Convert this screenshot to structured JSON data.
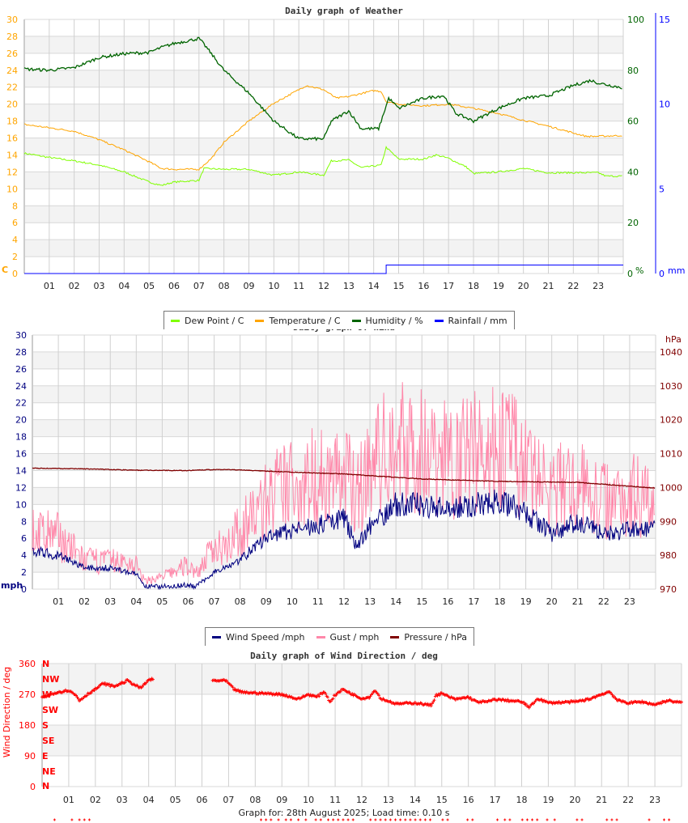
{
  "chart_data": [
    {
      "type": "line",
      "title": "Daily graph of Weather",
      "x_labels": [
        "01",
        "02",
        "03",
        "04",
        "05",
        "06",
        "07",
        "08",
        "09",
        "10",
        "11",
        "12",
        "13",
        "14",
        "15",
        "16",
        "17",
        "18",
        "19",
        "20",
        "21",
        "22",
        "23"
      ],
      "left_axis": {
        "unit": "C",
        "range": [
          0,
          30
        ],
        "ticks": [
          0,
          2,
          4,
          6,
          8,
          10,
          12,
          14,
          16,
          18,
          20,
          22,
          24,
          26,
          28,
          30
        ]
      },
      "right_axis_1": {
        "unit": "%",
        "range": [
          0,
          100
        ],
        "ticks": [
          0,
          20,
          40,
          60,
          80,
          100
        ]
      },
      "right_axis_2": {
        "unit": "mm",
        "range": [
          0,
          15
        ],
        "ticks": [
          0,
          5,
          10,
          15
        ]
      },
      "series": [
        {
          "name": "Dew Point / C",
          "color": "#80ff00",
          "axis": "left",
          "points": [
            [
              0,
              14.2
            ],
            [
              1,
              13.7
            ],
            [
              2,
              13.3
            ],
            [
              3,
              12.8
            ],
            [
              4,
              12
            ],
            [
              5,
              10.8
            ],
            [
              5.5,
              10.4
            ],
            [
              6,
              10.8
            ],
            [
              7,
              11
            ],
            [
              7.2,
              12.4
            ],
            [
              8,
              12.3
            ],
            [
              9,
              12.3
            ],
            [
              10,
              11.6
            ],
            [
              11,
              12
            ],
            [
              12,
              11.6
            ],
            [
              12.3,
              13.3
            ],
            [
              13,
              13.4
            ],
            [
              13.5,
              12.5
            ],
            [
              14.3,
              12.8
            ],
            [
              14.5,
              14.9
            ],
            [
              15,
              13.5
            ],
            [
              16,
              13.5
            ],
            [
              16.5,
              14
            ],
            [
              17,
              13.6
            ],
            [
              17.7,
              12.6
            ],
            [
              18,
              11.8
            ],
            [
              19,
              12
            ],
            [
              20,
              12.4
            ],
            [
              21,
              11.9
            ],
            [
              22,
              11.9
            ],
            [
              23,
              11.9
            ],
            [
              23.3,
              11.5
            ],
            [
              24,
              11.5
            ]
          ]
        },
        {
          "name": "Temperature / C",
          "color": "#ffa500",
          "axis": "left",
          "points": [
            [
              0,
              17.6
            ],
            [
              1,
              17.2
            ],
            [
              2,
              16.8
            ],
            [
              3,
              15.8
            ],
            [
              4,
              14.6
            ],
            [
              5,
              13.2
            ],
            [
              5.5,
              12.4
            ],
            [
              6,
              12.3
            ],
            [
              7,
              12.3
            ],
            [
              7.5,
              13.6
            ],
            [
              8,
              15.5
            ],
            [
              9,
              18
            ],
            [
              10,
              20.1
            ],
            [
              11,
              21.7
            ],
            [
              11.3,
              22.2
            ],
            [
              12,
              21.7
            ],
            [
              12.5,
              20.7
            ],
            [
              13,
              20.9
            ],
            [
              14,
              21.6
            ],
            [
              14.3,
              21.5
            ],
            [
              14.5,
              20.3
            ],
            [
              15,
              20
            ],
            [
              16,
              19.8
            ],
            [
              17,
              20
            ],
            [
              18,
              19.5
            ],
            [
              19,
              18.9
            ],
            [
              20,
              18.1
            ],
            [
              21,
              17.4
            ],
            [
              22,
              16.6
            ],
            [
              22.5,
              16.2
            ],
            [
              23,
              16.2
            ],
            [
              24,
              16.3
            ]
          ]
        },
        {
          "name": "Humidity / %",
          "color": "#006400",
          "axis": "right_1",
          "points": [
            [
              0,
              80.5
            ],
            [
              1,
              80
            ],
            [
              2,
              81
            ],
            [
              3,
              85
            ],
            [
              4,
              86.5
            ],
            [
              5,
              87
            ],
            [
              5.5,
              89
            ],
            [
              6,
              90.5
            ],
            [
              7,
              92.5
            ],
            [
              7.3,
              89
            ],
            [
              8,
              80
            ],
            [
              9,
              71
            ],
            [
              10,
              60
            ],
            [
              11,
              53
            ],
            [
              12,
              53
            ],
            [
              12.3,
              60
            ],
            [
              13,
              64
            ],
            [
              13.5,
              57
            ],
            [
              14.2,
              57
            ],
            [
              14.6,
              69
            ],
            [
              15,
              65
            ],
            [
              16,
              69
            ],
            [
              16.8,
              70
            ],
            [
              17.3,
              63
            ],
            [
              18,
              60
            ],
            [
              19,
              65
            ],
            [
              20,
              69
            ],
            [
              21,
              70
            ],
            [
              22,
              74
            ],
            [
              22.7,
              76
            ],
            [
              23,
              75
            ],
            [
              24,
              73
            ]
          ]
        },
        {
          "name": "Rainfall / mm",
          "color": "#0000ff",
          "axis": "right_2",
          "points": [
            [
              0,
              0
            ],
            [
              14.5,
              0
            ],
            [
              14.5,
              0.5
            ],
            [
              24,
              0.5
            ]
          ]
        }
      ]
    },
    {
      "type": "line",
      "title": "Daily graph of Wind",
      "x_labels": [
        "01",
        "02",
        "03",
        "04",
        "05",
        "06",
        "07",
        "08",
        "09",
        "10",
        "11",
        "12",
        "13",
        "14",
        "15",
        "16",
        "17",
        "18",
        "19",
        "20",
        "21",
        "22",
        "23"
      ],
      "left_axis": {
        "unit": "mph",
        "range": [
          0,
          30
        ],
        "ticks": [
          0,
          2,
          4,
          6,
          8,
          10,
          12,
          14,
          16,
          18,
          20,
          22,
          24,
          26,
          28,
          30
        ]
      },
      "right_axis": {
        "unit": "hPa",
        "range": [
          970,
          1045
        ],
        "ticks": [
          970,
          980,
          990,
          1000,
          1010,
          1020,
          1030,
          1040
        ]
      },
      "series": [
        {
          "name": "Wind Speed /mph",
          "color": "#000080",
          "axis": "left",
          "points": [
            [
              0,
              4.5
            ],
            [
              1,
              4
            ],
            [
              2,
              2.5
            ],
            [
              3,
              2.5
            ],
            [
              4,
              1.8
            ],
            [
              4.3,
              0.3
            ],
            [
              5,
              0.3
            ],
            [
              6,
              0.5
            ],
            [
              6.3,
              0.3
            ],
            [
              7,
              2
            ],
            [
              8,
              3.5
            ],
            [
              9,
              6
            ],
            [
              10,
              7
            ],
            [
              11,
              7.5
            ],
            [
              12,
              8.5
            ],
            [
              12.5,
              5
            ],
            [
              13,
              7.5
            ],
            [
              14,
              10
            ],
            [
              15,
              10
            ],
            [
              16,
              9.5
            ],
            [
              17,
              10
            ],
            [
              18,
              10.5
            ],
            [
              19,
              9
            ],
            [
              20,
              6.5
            ],
            [
              21,
              8
            ],
            [
              22,
              6.5
            ],
            [
              23,
              7
            ],
            [
              24,
              7
            ]
          ]
        },
        {
          "name": "Gust / mph",
          "color": "#ff88aa",
          "axis": "left",
          "points": [
            [
              0,
              7
            ],
            [
              1,
              6.5
            ],
            [
              2,
              3.5
            ],
            [
              3,
              3.5
            ],
            [
              4,
              3
            ],
            [
              4.3,
              1
            ],
            [
              5,
              1.5
            ],
            [
              6,
              3
            ],
            [
              6.3,
              2
            ],
            [
              7,
              5
            ],
            [
              8,
              7
            ],
            [
              9,
              11
            ],
            [
              10,
              13
            ],
            [
              11,
              14
            ],
            [
              12,
              14
            ],
            [
              12.5,
              12
            ],
            [
              13,
              15
            ],
            [
              14,
              18
            ],
            [
              15,
              17
            ],
            [
              16,
              16
            ],
            [
              17,
              17
            ],
            [
              18,
              18
            ],
            [
              19,
              15
            ],
            [
              20,
              12
            ],
            [
              21,
              13
            ],
            [
              22,
              11
            ],
            [
              23,
              12
            ],
            [
              24,
              11
            ]
          ]
        },
        {
          "name": "Pressure / hPa",
          "color": "#800000",
          "axis": "right",
          "points": [
            [
              0,
              1005.7
            ],
            [
              2,
              1005.5
            ],
            [
              4,
              1005.1
            ],
            [
              6,
              1005
            ],
            [
              7,
              1005.3
            ],
            [
              8,
              1005.2
            ],
            [
              9,
              1004.8
            ],
            [
              12,
              1004
            ],
            [
              15,
              1002.5
            ],
            [
              18,
              1001.8
            ],
            [
              21,
              1001.5
            ],
            [
              24,
              999.8
            ]
          ]
        }
      ]
    },
    {
      "type": "scatter",
      "title": "Daily graph of Wind Direction / deg",
      "ylabel": "Wind Direction / deg",
      "x_labels": [
        "01",
        "02",
        "03",
        "04",
        "05",
        "06",
        "07",
        "08",
        "09",
        "10",
        "11",
        "12",
        "13",
        "14",
        "15",
        "16",
        "17",
        "18",
        "19",
        "20",
        "21",
        "22",
        "23"
      ],
      "y_range": [
        0,
        360
      ],
      "y_ticks": [
        0,
        90,
        180,
        270,
        360
      ],
      "compass_labels": [
        "N",
        "NE",
        "E",
        "SE",
        "S",
        "SW",
        "W",
        "NW",
        "N"
      ],
      "color": "#ff0000",
      "points": [
        [
          0,
          260
        ],
        [
          0.5,
          275
        ],
        [
          1,
          282
        ],
        [
          1.3,
          265
        ],
        [
          1.4,
          252
        ],
        [
          1.7,
          270
        ],
        [
          2,
          285
        ],
        [
          2.3,
          302
        ],
        [
          2.7,
          293
        ],
        [
          3.2,
          310
        ],
        [
          3.7,
          288
        ],
        [
          4,
          312
        ],
        [
          4.5,
          318
        ],
        [
          5,
          316
        ],
        [
          5.3,
          300
        ],
        [
          null,
          null
        ],
        [
          6.4,
          310
        ],
        [
          6.9,
          310
        ],
        [
          7.2,
          285
        ],
        [
          7.5,
          276
        ],
        [
          8,
          274
        ],
        [
          9,
          270
        ],
        [
          9.6,
          256
        ],
        [
          10,
          270
        ],
        [
          10.3,
          262
        ],
        [
          10.6,
          278
        ],
        [
          10.8,
          248
        ],
        [
          11,
          268
        ],
        [
          11.3,
          285
        ],
        [
          11.6,
          272
        ],
        [
          12,
          258
        ],
        [
          12.3,
          262
        ],
        [
          12.5,
          284
        ],
        [
          12.7,
          258
        ],
        [
          13,
          250
        ],
        [
          13.3,
          242
        ],
        [
          14,
          245
        ],
        [
          14.6,
          238
        ],
        [
          14.8,
          268
        ],
        [
          15,
          272
        ],
        [
          15.5,
          255
        ],
        [
          16,
          262
        ],
        [
          16.3,
          248
        ],
        [
          16.7,
          248
        ],
        [
          17,
          255
        ],
        [
          17.5,
          252
        ],
        [
          18,
          248
        ],
        [
          18.3,
          232
        ],
        [
          18.6,
          258
        ],
        [
          19,
          245
        ],
        [
          20,
          248
        ],
        [
          20.5,
          255
        ],
        [
          21,
          270
        ],
        [
          21.3,
          278
        ],
        [
          21.6,
          252
        ],
        [
          22,
          245
        ],
        [
          22.5,
          248
        ],
        [
          23,
          240
        ],
        [
          23.5,
          252
        ],
        [
          24,
          245
        ]
      ],
      "overflow_marks": [
        0.5,
        1.2,
        1.5,
        1.7,
        1.9,
        8.8,
        9.0,
        9.2,
        9.5,
        9.8,
        10.0,
        10.3,
        10.6,
        11.0,
        11.2,
        11.5,
        11.7,
        11.9,
        12.1,
        12.3,
        12.5,
        13.2,
        13.4,
        13.6,
        13.8,
        14.0,
        14.2,
        14.4,
        14.6,
        14.8,
        15.0,
        15.2,
        15.4,
        15.6,
        16.1,
        16.3,
        17.1,
        17.3,
        18.3,
        18.6,
        18.8,
        19.3,
        19.5,
        19.7,
        19.9,
        20.3,
        20.6,
        21.5,
        21.7,
        22.7,
        22.9,
        23.1,
        24.4,
        25.0,
        25.2
      ]
    }
  ],
  "legend_weather": [
    {
      "label": "Dew Point / C",
      "color": "#80ff00"
    },
    {
      "label": "Temperature / C",
      "color": "#ffa500"
    },
    {
      "label": "Humidity / %",
      "color": "#006400"
    },
    {
      "label": "Rainfall / mm",
      "color": "#0000ff"
    }
  ],
  "legend_wind": [
    {
      "label": "Wind Speed /mph",
      "color": "#000080"
    },
    {
      "label": "Gust / mph",
      "color": "#ff88aa"
    },
    {
      "label": "Pressure / hPa",
      "color": "#800000"
    }
  ],
  "footer": "Graph for: 28th August 2025; Load time: 0.10 s"
}
